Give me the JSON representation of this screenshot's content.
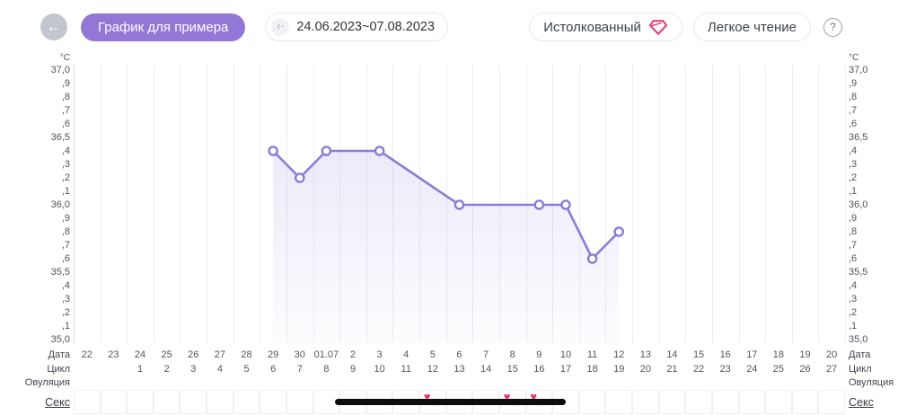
{
  "header": {
    "back_label": "←",
    "title_button": "График для примера",
    "date_icon": "‹·",
    "date_range": "24.06.2023~07.08.2023",
    "interpreted_button": "Истолкованный",
    "easy_reading_button": "Легкое чтение",
    "help_label": "?"
  },
  "colors": {
    "accent_purple": "#9377d6",
    "line_purple": "#8b7cd8",
    "area_fill": "#8b7cd8",
    "heart_pink": "#e2397a",
    "gem_pink": "#e0457b",
    "sex_line_black": "#0d0d0d"
  },
  "axis": {
    "unit": "°C",
    "ticks": [
      "37,0",
      ",9",
      ",8",
      ",7",
      ",6",
      "36,5",
      ",4",
      ",3",
      ",2",
      ",1",
      "36,0",
      ",9",
      ",8",
      ",7",
      ",6",
      "35,5",
      ",4",
      ",3",
      ",2",
      ",1",
      "35,0"
    ]
  },
  "rows": {
    "date_label": "Дата",
    "cycle_label": "Цикл",
    "ovulation_label": "Овуляция",
    "sex_label": "Секс",
    "dates": [
      "22",
      "23",
      "24",
      "25",
      "26",
      "27",
      "28",
      "29",
      "30",
      "01.07",
      "2",
      "3",
      "4",
      "5",
      "6",
      "7",
      "8",
      "9",
      "10",
      "11",
      "12",
      "13",
      "14",
      "15",
      "16",
      "17",
      "18",
      "19",
      "20"
    ],
    "cycles": [
      "",
      "",
      "1",
      "2",
      "3",
      "4",
      "5",
      "6",
      "7",
      "8",
      "9",
      "10",
      "11",
      "12",
      "13",
      "14",
      "15",
      "16",
      "17",
      "18",
      "19",
      "20",
      "21",
      "22",
      "23",
      "24",
      "25",
      "26",
      "27"
    ]
  },
  "chart_data": {
    "type": "line",
    "title": "График для примера",
    "unit": "°C",
    "x_categories": [
      "22",
      "23",
      "24",
      "25",
      "26",
      "27",
      "28",
      "29",
      "30",
      "01.07",
      "2",
      "3",
      "4",
      "5",
      "6",
      "7",
      "8",
      "9",
      "10",
      "11",
      "12",
      "13",
      "14",
      "15",
      "16",
      "17",
      "18",
      "19",
      "20"
    ],
    "points": [
      {
        "date": "29",
        "temp": 36.4
      },
      {
        "date": "30",
        "temp": 36.2
      },
      {
        "date": "01.07",
        "temp": 36.4
      },
      {
        "date": "3",
        "temp": 36.4
      },
      {
        "date": "6",
        "temp": 36.0
      },
      {
        "date": "9",
        "temp": 36.0
      },
      {
        "date": "10",
        "temp": 36.0
      },
      {
        "date": "11",
        "temp": 35.6
      },
      {
        "date": "12",
        "temp": 35.8
      }
    ],
    "ylim": [
      35.0,
      37.0
    ],
    "y_step": 0.1,
    "grid": "vertical-only",
    "legend": "none"
  },
  "sex_row": {
    "line_start_date": "01.07",
    "line_end_date": "10",
    "heart_dates": [
      "5",
      "8",
      "9"
    ]
  }
}
